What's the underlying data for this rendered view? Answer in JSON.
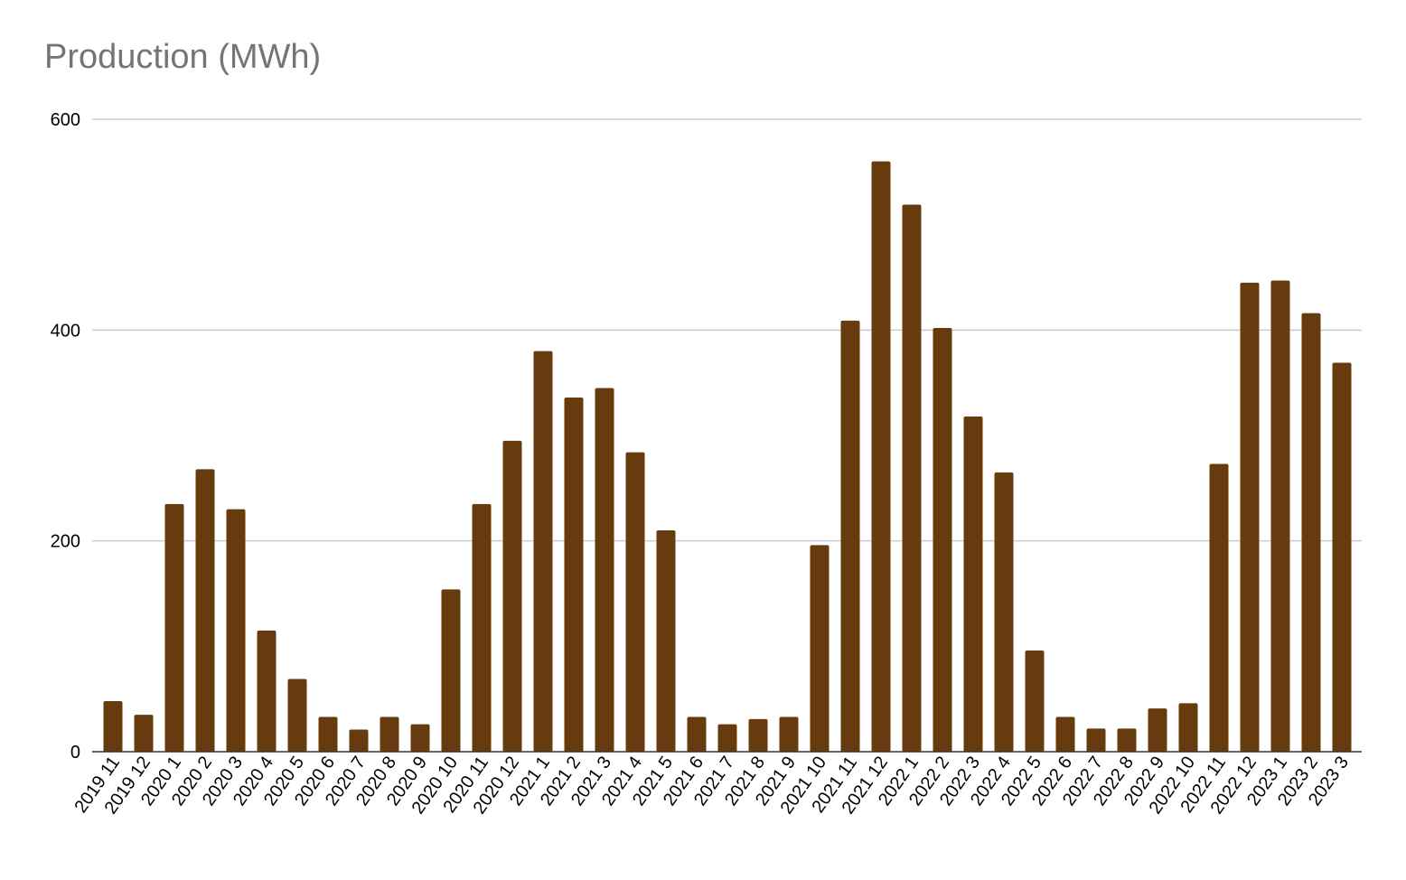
{
  "chart_data": {
    "type": "bar",
    "title": "Production (MWh)",
    "xlabel": "",
    "ylabel": "",
    "ylim": [
      0,
      600
    ],
    "yticks": [
      0,
      200,
      400,
      600
    ],
    "grid": true,
    "colors": {
      "bar": "#673B0D",
      "grid": "#CCCCCC",
      "axis": "#333333",
      "title": "#757575"
    },
    "categories": [
      "2019 11",
      "2019 12",
      "2020 1",
      "2020 2",
      "2020 3",
      "2020 4",
      "2020 5",
      "2020 6",
      "2020 7",
      "2020 8",
      "2020 9",
      "2020 10",
      "2020 11",
      "2020 12",
      "2021 1",
      "2021 2",
      "2021 3",
      "2021 4",
      "2021 5",
      "2021 6",
      "2021 7",
      "2021 8",
      "2021 9",
      "2021 10",
      "2021 11",
      "2021 12",
      "2022 1",
      "2022 2",
      "2022 3",
      "2022 4",
      "2022 5",
      "2022 6",
      "2022 7",
      "2022 8",
      "2022 9",
      "2022 10",
      "2022 11",
      "2022 12",
      "2023 1",
      "2023 2",
      "2023 3"
    ],
    "values": [
      48,
      35,
      235,
      268,
      230,
      115,
      69,
      33,
      21,
      33,
      26,
      154,
      235,
      295,
      380,
      336,
      345,
      284,
      210,
      33,
      26,
      31,
      33,
      196,
      409,
      560,
      519,
      402,
      318,
      265,
      96,
      33,
      22,
      22,
      41,
      46,
      273,
      445,
      447,
      416,
      369
    ]
  }
}
